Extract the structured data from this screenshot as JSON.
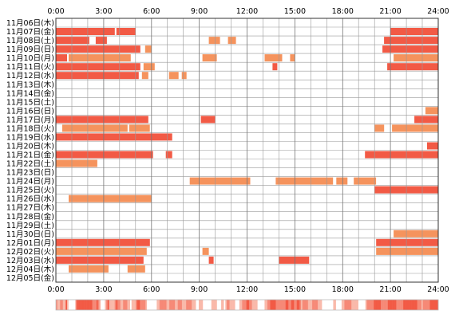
{
  "colors": {
    "frame": "#333333",
    "grid": "#999999",
    "dark": "#f25a45",
    "light": "#f5935d",
    "strip_low": "#fde8dc",
    "strip_high": "#f25a45"
  },
  "chart_data": {
    "type": "heatmap",
    "title": "",
    "xlabel": "",
    "ylabel": "",
    "x_ticks": [
      "0:00",
      "3:00",
      "6:00",
      "9:00",
      "12:00",
      "15:00",
      "18:00",
      "21:00",
      "24:00"
    ],
    "x_range_hours": [
      0,
      24
    ],
    "grid": true,
    "days": [
      "11月06日(木)",
      "11月07日(金)",
      "11月08日(土)",
      "11月09日(日)",
      "11月10日(月)",
      "11月11日(火)",
      "11月12日(水)",
      "11月13日(木)",
      "11月14日(金)",
      "11月15日(土)",
      "11月16日(日)",
      "11月17日(月)",
      "11月18日(火)",
      "11月19日(水)",
      "11月20日(木)",
      "11月21日(金)",
      "11月22日(土)",
      "11月23日(日)",
      "11月24日(月)",
      "11月25日(火)",
      "11月26日(水)",
      "11月27日(木)",
      "11月28日(金)",
      "11月29日(土)",
      "11月30日(日)",
      "12月01日(月)",
      "12月02日(火)",
      "12月03日(水)",
      "12月04日(木)",
      "12月05日(金)"
    ],
    "activity": [
      [],
      [
        [
          0.0,
          3.7,
          "dark"
        ],
        [
          3.8,
          5.0,
          "dark"
        ],
        [
          21.0,
          24.0,
          "dark"
        ]
      ],
      [
        [
          0.0,
          2.1,
          "dark"
        ],
        [
          2.5,
          3.2,
          "dark"
        ],
        [
          9.6,
          10.3,
          "light"
        ],
        [
          10.8,
          11.3,
          "light"
        ],
        [
          20.6,
          24.0,
          "dark"
        ]
      ],
      [
        [
          0.0,
          5.3,
          "dark"
        ],
        [
          5.6,
          6.0,
          "light"
        ],
        [
          20.5,
          24.0,
          "dark"
        ]
      ],
      [
        [
          0.0,
          0.7,
          "dark"
        ],
        [
          0.8,
          4.7,
          "light"
        ],
        [
          9.2,
          10.1,
          "light"
        ],
        [
          13.1,
          14.2,
          "light"
        ],
        [
          14.7,
          15.0,
          "light"
        ],
        [
          21.2,
          24.0,
          "light"
        ]
      ],
      [
        [
          0.0,
          5.3,
          "dark"
        ],
        [
          5.5,
          6.2,
          "light"
        ],
        [
          13.6,
          13.9,
          "dark"
        ],
        [
          20.8,
          24.0,
          "dark"
        ]
      ],
      [
        [
          0.0,
          5.2,
          "dark"
        ],
        [
          5.4,
          5.8,
          "light"
        ],
        [
          7.1,
          7.7,
          "light"
        ],
        [
          7.9,
          8.2,
          "light"
        ]
      ],
      [],
      [],
      [],
      [
        [
          23.2,
          24.0,
          "light"
        ]
      ],
      [
        [
          0.0,
          5.8,
          "dark"
        ],
        [
          9.1,
          10.0,
          "dark"
        ],
        [
          22.5,
          24.0,
          "dark"
        ]
      ],
      [
        [
          0.4,
          4.5,
          "light"
        ],
        [
          4.6,
          5.9,
          "light"
        ],
        [
          20.0,
          20.6,
          "light"
        ],
        [
          21.1,
          24.0,
          "light"
        ]
      ],
      [
        [
          0.0,
          7.3,
          "dark"
        ]
      ],
      [
        [
          23.3,
          24.0,
          "dark"
        ]
      ],
      [
        [
          0.0,
          6.1,
          "dark"
        ],
        [
          6.9,
          7.3,
          "dark"
        ],
        [
          19.4,
          24.0,
          "dark"
        ]
      ],
      [
        [
          0.0,
          2.6,
          "light"
        ]
      ],
      [],
      [
        [
          8.4,
          12.2,
          "light"
        ],
        [
          13.8,
          17.4,
          "light"
        ],
        [
          17.6,
          18.3,
          "light"
        ],
        [
          18.7,
          20.1,
          "light"
        ]
      ],
      [
        [
          20.0,
          24.0,
          "dark"
        ]
      ],
      [
        [
          0.8,
          6.0,
          "light"
        ]
      ],
      [],
      [],
      [],
      [
        [
          21.2,
          24.0,
          "light"
        ]
      ],
      [
        [
          0.0,
          5.9,
          "dark"
        ],
        [
          20.1,
          24.0,
          "dark"
        ]
      ],
      [
        [
          0.0,
          5.7,
          "light"
        ],
        [
          9.2,
          9.6,
          "light"
        ],
        [
          20.1,
          24.0,
          "light"
        ]
      ],
      [
        [
          0.0,
          5.5,
          "dark"
        ],
        [
          9.6,
          9.9,
          "dark"
        ],
        [
          14.0,
          15.9,
          "dark"
        ]
      ],
      [
        [
          0.8,
          3.3,
          "light"
        ],
        [
          4.5,
          5.6,
          "light"
        ]
      ],
      []
    ],
    "overall_strip": [
      2,
      1,
      1,
      2,
      2,
      1,
      1,
      3,
      1,
      0,
      0,
      0,
      0,
      0,
      2,
      3,
      3,
      3,
      3,
      3,
      3,
      3,
      3,
      3,
      3,
      3,
      2,
      2,
      2,
      3,
      2,
      1,
      0,
      0,
      0,
      1,
      2,
      3,
      1,
      1,
      1,
      1,
      2,
      3,
      2,
      2,
      1,
      1,
      2,
      2,
      2,
      1,
      1,
      0,
      1,
      1,
      1,
      2,
      3,
      3,
      2,
      2,
      2,
      2,
      1,
      0,
      0,
      0,
      0,
      0,
      0,
      0,
      1,
      1,
      2,
      2,
      2,
      2,
      2,
      1,
      1,
      2,
      2,
      2,
      2,
      1,
      1,
      2,
      2,
      2,
      1,
      1,
      1,
      2,
      2,
      2,
      2,
      1,
      1,
      1,
      0,
      0,
      1,
      1,
      1,
      0,
      0,
      0,
      0,
      0,
      0,
      1,
      1,
      1,
      1,
      0,
      0,
      0,
      1,
      1,
      0,
      1,
      2,
      2,
      1,
      1,
      1,
      1,
      0,
      0,
      0,
      1,
      1,
      2,
      2,
      2,
      3,
      3,
      2,
      2,
      1,
      1,
      1,
      1,
      0,
      0,
      0,
      0,
      0,
      1,
      1,
      2,
      2,
      3,
      3,
      3,
      3,
      2,
      2,
      2,
      2,
      2,
      2,
      2,
      3,
      3,
      2,
      2,
      3,
      3,
      2,
      2,
      3,
      3,
      2,
      1,
      2,
      2,
      2,
      2,
      1,
      1,
      1,
      2,
      2,
      2,
      2,
      1,
      1,
      1,
      0,
      0,
      0,
      0,
      0,
      0,
      0,
      0,
      1,
      1,
      0,
      0,
      0,
      0,
      1,
      1,
      2,
      2,
      2,
      2,
      2,
      1,
      1,
      1,
      1,
      1,
      0,
      0,
      0,
      0,
      0,
      1,
      2,
      2,
      2,
      2,
      2,
      3,
      3,
      3,
      3,
      3,
      2,
      2,
      2,
      2,
      2,
      3,
      3,
      3,
      3,
      3,
      3,
      2,
      2,
      2,
      2,
      2,
      3,
      3,
      3,
      3,
      3,
      3,
      3,
      3,
      3,
      3,
      2,
      2,
      2,
      1,
      2,
      2,
      2,
      2,
      2,
      3,
      3,
      3,
      3,
      3,
      3
    ]
  }
}
